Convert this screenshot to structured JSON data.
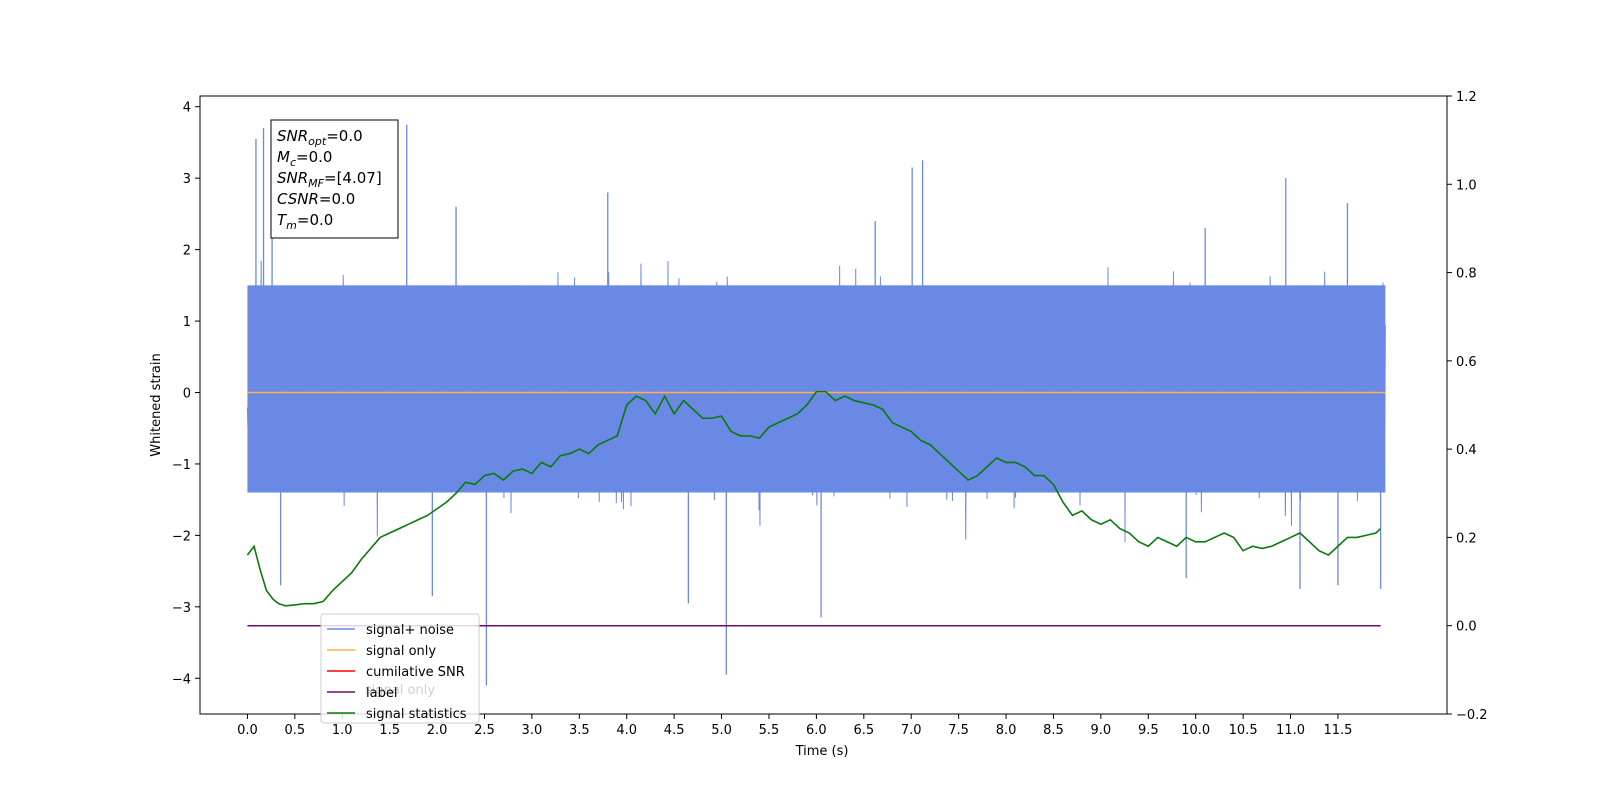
{
  "chart_data": {
    "type": "line",
    "title": "",
    "xlabel": "Time (s)",
    "ylabel": "Whitened strain",
    "xlim": [
      -0.5,
      12.65
    ],
    "ylim": [
      -4.5,
      4.15
    ],
    "y2lim": [
      -0.2,
      1.2
    ],
    "grid": false,
    "legend_position": "lower-left",
    "x_ticks": [
      0.0,
      0.5,
      1.0,
      1.5,
      2.0,
      2.5,
      3.0,
      3.5,
      4.0,
      4.5,
      5.0,
      5.5,
      6.0,
      6.5,
      7.0,
      7.5,
      8.0,
      8.5,
      9.0,
      9.5,
      10.0,
      10.5,
      11.0,
      11.5
    ],
    "x_tick_labels": [
      "0.0",
      "0.5",
      "1.0",
      "1.5",
      "2.0",
      "2.5",
      "3.0",
      "3.5",
      "4.0",
      "4.5",
      "5.0",
      "5.5",
      "6.0",
      "6.5",
      "7.0",
      "7.5",
      "8.0",
      "8.5",
      "9.0",
      "9.5",
      "10.0",
      "10.5",
      "11.0",
      "11.5"
    ],
    "y_ticks": [
      -4,
      -3,
      -2,
      -1,
      0,
      1,
      2,
      3,
      4
    ],
    "y_tick_labels": [
      "−4",
      "−3",
      "−2",
      "−1",
      "0",
      "1",
      "2",
      "3",
      "4"
    ],
    "y2_ticks": [
      -0.2,
      0.0,
      0.2,
      0.4,
      0.6,
      0.8,
      1.0,
      1.2
    ],
    "y2_tick_labels": [
      "−0.2",
      "0.0",
      "0.2",
      "0.4",
      "0.6",
      "0.8",
      "1.0",
      "1.2"
    ],
    "series": [
      {
        "name": "signal+ noise",
        "color": "#6a89e4",
        "axis": "left",
        "kind": "noise",
        "x_range": [
          0.0,
          12.0
        ],
        "envelope_upper": 1.5,
        "envelope_lower": -1.4,
        "spikes": [
          {
            "x": 0.09,
            "y": 3.55
          },
          {
            "x": 0.17,
            "y": 3.7
          },
          {
            "x": 0.26,
            "y": 2.5
          },
          {
            "x": 1.68,
            "y": 3.75
          },
          {
            "x": 2.2,
            "y": 2.6
          },
          {
            "x": 3.8,
            "y": 2.8
          },
          {
            "x": 7.12,
            "y": 3.25
          },
          {
            "x": 7.01,
            "y": 3.15
          },
          {
            "x": 6.62,
            "y": 2.4
          },
          {
            "x": 10.1,
            "y": 2.3
          },
          {
            "x": 10.95,
            "y": 3.0
          },
          {
            "x": 11.6,
            "y": 2.65
          },
          {
            "x": 2.52,
            "y": -4.1
          },
          {
            "x": 5.05,
            "y": -3.95
          },
          {
            "x": 6.05,
            "y": -3.15
          },
          {
            "x": 4.65,
            "y": -2.95
          },
          {
            "x": 1.95,
            "y": -2.85
          },
          {
            "x": 0.35,
            "y": -2.7
          },
          {
            "x": 11.5,
            "y": -2.7
          },
          {
            "x": 11.95,
            "y": -2.75
          },
          {
            "x": 9.9,
            "y": -2.6
          },
          {
            "x": 11.1,
            "y": -2.75
          }
        ]
      },
      {
        "name": "signal only",
        "color": "#ffb347",
        "axis": "left",
        "x": [
          0.0,
          12.0
        ],
        "y": [
          0.0,
          0.0
        ]
      },
      {
        "name": "cumilative SNR",
        "color": "#ff0000",
        "axis": "right",
        "x": [],
        "y": []
      },
      {
        "name": "label",
        "color": "#6a0d6a",
        "axis": "right",
        "x": [
          0.0,
          11.95
        ],
        "y": [
          0.0,
          0.0
        ]
      },
      {
        "name": "signal statistics",
        "color": "#0a7a0a",
        "axis": "right",
        "x": [
          0.0,
          0.07,
          0.13,
          0.2,
          0.27,
          0.33,
          0.4,
          0.5,
          0.6,
          0.7,
          0.8,
          0.9,
          1.0,
          1.1,
          1.2,
          1.3,
          1.4,
          1.5,
          1.6,
          1.7,
          1.8,
          1.9,
          2.0,
          2.1,
          2.2,
          2.3,
          2.4,
          2.5,
          2.6,
          2.7,
          2.8,
          2.9,
          3.0,
          3.1,
          3.2,
          3.3,
          3.4,
          3.5,
          3.6,
          3.7,
          3.8,
          3.9,
          4.0,
          4.1,
          4.2,
          4.3,
          4.4,
          4.5,
          4.6,
          4.7,
          4.8,
          4.9,
          5.0,
          5.1,
          5.2,
          5.3,
          5.4,
          5.5,
          5.6,
          5.7,
          5.8,
          5.9,
          6.0,
          6.1,
          6.2,
          6.3,
          6.4,
          6.5,
          6.6,
          6.7,
          6.8,
          6.9,
          7.0,
          7.1,
          7.2,
          7.3,
          7.4,
          7.5,
          7.6,
          7.7,
          7.8,
          7.9,
          8.0,
          8.1,
          8.2,
          8.3,
          8.4,
          8.5,
          8.6,
          8.7,
          8.8,
          8.9,
          9.0,
          9.1,
          9.2,
          9.3,
          9.4,
          9.5,
          9.6,
          9.7,
          9.8,
          9.9,
          10.0,
          10.1,
          10.2,
          10.3,
          10.4,
          10.5,
          10.6,
          10.7,
          10.8,
          10.9,
          11.0,
          11.1,
          11.2,
          11.3,
          11.4,
          11.5,
          11.6,
          11.7,
          11.8,
          11.9,
          11.95
        ],
        "y": [
          0.16,
          0.18,
          0.13,
          0.08,
          0.06,
          0.05,
          0.045,
          0.047,
          0.05,
          0.05,
          0.055,
          0.08,
          0.1,
          0.12,
          0.15,
          0.175,
          0.2,
          0.21,
          0.22,
          0.23,
          0.24,
          0.25,
          0.265,
          0.28,
          0.3,
          0.325,
          0.32,
          0.34,
          0.345,
          0.33,
          0.35,
          0.355,
          0.345,
          0.37,
          0.36,
          0.385,
          0.39,
          0.4,
          0.39,
          0.41,
          0.42,
          0.43,
          0.5,
          0.52,
          0.51,
          0.48,
          0.52,
          0.48,
          0.51,
          0.49,
          0.47,
          0.47,
          0.475,
          0.44,
          0.43,
          0.43,
          0.425,
          0.45,
          0.46,
          0.47,
          0.48,
          0.5,
          0.53,
          0.53,
          0.51,
          0.52,
          0.51,
          0.505,
          0.5,
          0.49,
          0.46,
          0.45,
          0.44,
          0.42,
          0.41,
          0.39,
          0.37,
          0.35,
          0.33,
          0.34,
          0.36,
          0.38,
          0.37,
          0.37,
          0.36,
          0.34,
          0.34,
          0.32,
          0.28,
          0.25,
          0.26,
          0.24,
          0.23,
          0.24,
          0.22,
          0.21,
          0.19,
          0.18,
          0.2,
          0.19,
          0.18,
          0.2,
          0.19,
          0.19,
          0.2,
          0.21,
          0.2,
          0.17,
          0.18,
          0.175,
          0.18,
          0.19,
          0.2,
          0.21,
          0.19,
          0.17,
          0.16,
          0.18,
          0.2,
          0.2,
          0.205,
          0.21,
          0.22
        ]
      }
    ],
    "info_box": [
      {
        "sym": "SNR",
        "sub": "opt",
        "text": "=0.0"
      },
      {
        "sym": "M",
        "sub": "c",
        "text": "=0.0"
      },
      {
        "sym": "SNR",
        "sub": "MF",
        "text": "=[4.07]"
      },
      {
        "sym": "CSNR",
        "sub": "",
        "text": "=0.0"
      },
      {
        "sym": "T",
        "sub": "m",
        "text": "=0.0"
      }
    ],
    "legend_ghost_text": "signal only"
  }
}
